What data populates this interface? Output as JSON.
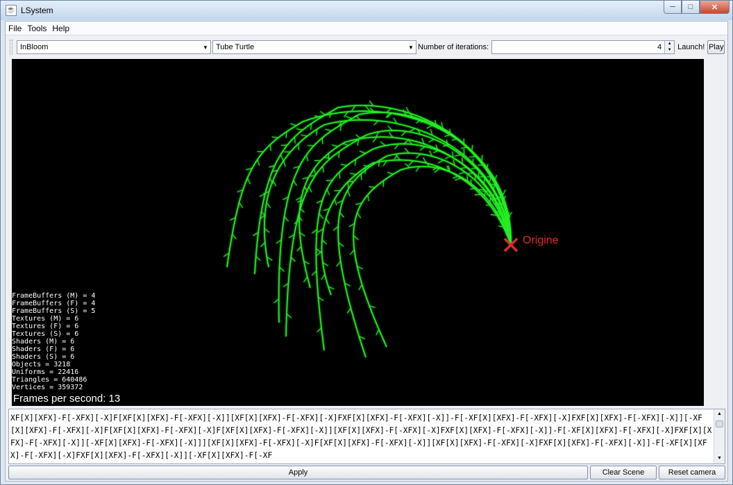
{
  "window": {
    "title": "LSystem"
  },
  "menu": [
    "File",
    "Tools",
    "Help"
  ],
  "toolbar": {
    "system_select": "InBloom",
    "turtle_select": "Tube Turtle",
    "iterations_label": "Number of iterations:",
    "iterations_value": "4",
    "launch_label": "Launch!",
    "play_label": "Play"
  },
  "viewport": {
    "origin_label": "Origine",
    "stats": [
      "FrameBuffers (M) = 4",
      "FrameBuffers (F) = 4",
      "FrameBuffers (S) = 5",
      "Textures (M) = 6",
      "Textures (F) = 6",
      "Textures (S) = 6",
      "Shaders (M) = 6",
      "Shaders (F) = 6",
      "Shaders (S) = 6",
      "Objects = 3218",
      "Uniforms = 22416",
      "Triangles = 640486",
      "Vertices = 359372"
    ],
    "fps_text": "Frames per second: 13",
    "plant_color": "#22ee22",
    "origin_color": "#e02a2a"
  },
  "grammar_text": "XF[X][XFX]-F[-XFX][-X]F[XF[X][XFX]-F[-XFX][-X]][XF[X][XFX]-F[-XFX][-X]FXF[X][XFX]-F[-XFX][-X]]-F[-XF[X][XFX]-F[-XFX][-X]FXF[X][XFX]-F[-XFX][-X]][-XF[X][XFX]-F[-XFX][-X]F[XF[X][XFX]-F[-XFX][-X]F[XF[X][XFX]-F[-XFX][-X]][XF[X][XFX]-F[-XFX][-X]FXF[X][XFX]-F[-XFX][-X]]-F[-XF[X][XFX]-F[-XFX][-X]FXF[X][XFX]-F[-XFX][-X]][-XF[X][XFX]-F[-XFX][-X]]][XF[X][XFX]-F[-XFX][-X]F[XF[X][XFX]-F[-XFX][-X]][XF[X][XFX]-F[-XFX][-X]FXF[X][XFX]-F[-XFX][-X]]-F[-XF[X][XFX]-F[-XFX][-X]FXF[X][XFX]-F[-XFX][-X]][-XF[X][XFX]-F[-XF",
  "buttons": {
    "apply": "Apply",
    "clear_scene": "Clear Scene",
    "reset_camera": "Reset camera"
  }
}
